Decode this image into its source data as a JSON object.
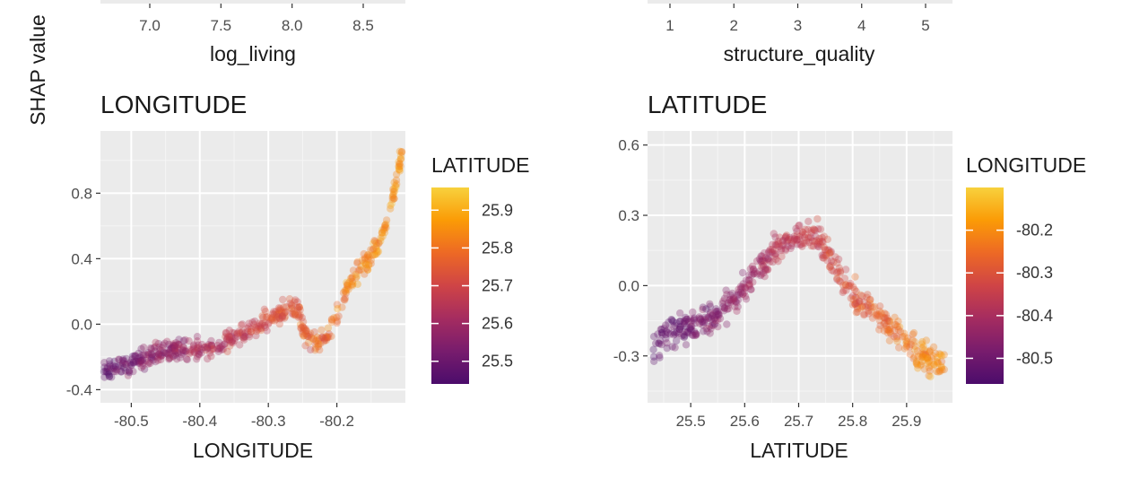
{
  "ylabel_shared": "SHAP value",
  "top_partial": {
    "left": {
      "xlabel": "log_living",
      "ticks": [
        "7.0",
        "7.5",
        "8.0",
        "8.5"
      ]
    },
    "right": {
      "xlabel": "structure_quality",
      "ticks": [
        "1",
        "2",
        "3",
        "4",
        "5"
      ]
    }
  },
  "chart_data": [
    {
      "type": "scatter",
      "title": "LONGITUDE",
      "xlabel": "LONGITUDE",
      "ylabel": "SHAP value",
      "xlim": [
        -80.545,
        -80.1
      ],
      "ylim": [
        -0.48,
        1.18
      ],
      "xticks": [
        -80.5,
        -80.4,
        -80.3,
        -80.2
      ],
      "xtick_labels": [
        "-80.5",
        "-80.4",
        "-80.3",
        "-80.2"
      ],
      "yticks": [
        -0.4,
        0.0,
        0.4,
        0.8
      ],
      "ytick_labels": [
        "-0.4",
        "0.0",
        "0.4",
        "0.8"
      ],
      "grid": true,
      "color_var": "LATITUDE",
      "colorbar": {
        "title": "LATITUDE",
        "min": 25.44,
        "max": 25.96,
        "ticks": [
          25.5,
          25.6,
          25.7,
          25.8,
          25.9
        ],
        "tick_labels": [
          "25.5",
          "25.6",
          "25.7",
          "25.8",
          "25.9"
        ]
      },
      "trend": [
        [
          -80.54,
          -0.28
        ],
        [
          -80.5,
          -0.24
        ],
        [
          -80.47,
          -0.19
        ],
        [
          -80.44,
          -0.16
        ],
        [
          -80.41,
          -0.15
        ],
        [
          -80.38,
          -0.14
        ],
        [
          -80.36,
          -0.1
        ],
        [
          -80.33,
          -0.04
        ],
        [
          -80.31,
          0.0
        ],
        [
          -80.29,
          0.05
        ],
        [
          -80.27,
          0.1
        ],
        [
          -80.255,
          0.07
        ],
        [
          -80.245,
          -0.08
        ],
        [
          -80.23,
          -0.12
        ],
        [
          -80.21,
          -0.04
        ],
        [
          -80.195,
          0.12
        ],
        [
          -80.18,
          0.26
        ],
        [
          -80.16,
          0.36
        ],
        [
          -80.14,
          0.48
        ],
        [
          -80.125,
          0.65
        ],
        [
          -80.115,
          0.85
        ],
        [
          -80.105,
          1.05
        ]
      ],
      "spread": 0.06
    },
    {
      "type": "scatter",
      "title": "LATITUDE",
      "xlabel": "LATITUDE",
      "ylabel": "SHAP value",
      "xlim": [
        25.42,
        25.985
      ],
      "ylim": [
        -0.5,
        0.66
      ],
      "xticks": [
        25.5,
        25.6,
        25.7,
        25.8,
        25.9
      ],
      "xtick_labels": [
        "25.5",
        "25.6",
        "25.7",
        "25.8",
        "25.9"
      ],
      "yticks": [
        -0.3,
        0.0,
        0.3,
        0.6
      ],
      "ytick_labels": [
        "-0.3",
        "0.0",
        "0.3",
        "0.6"
      ],
      "grid": true,
      "color_var": "LONGITUDE",
      "colorbar": {
        "title": "LONGITUDE",
        "min": -80.56,
        "max": -80.1,
        "ticks": [
          -80.2,
          -80.3,
          -80.4,
          -80.5
        ],
        "tick_labels": [
          "-80.2",
          "-80.3",
          "-80.4",
          "-80.5"
        ]
      },
      "trend": [
        [
          25.43,
          -0.25
        ],
        [
          25.46,
          -0.19
        ],
        [
          25.5,
          -0.18
        ],
        [
          25.54,
          -0.15
        ],
        [
          25.58,
          -0.06
        ],
        [
          25.62,
          0.06
        ],
        [
          25.65,
          0.13
        ],
        [
          25.68,
          0.2
        ],
        [
          25.71,
          0.23
        ],
        [
          25.74,
          0.2
        ],
        [
          25.76,
          0.1
        ],
        [
          25.78,
          0.02
        ],
        [
          25.8,
          -0.04
        ],
        [
          25.83,
          -0.1
        ],
        [
          25.86,
          -0.16
        ],
        [
          25.89,
          -0.22
        ],
        [
          25.92,
          -0.29
        ],
        [
          25.95,
          -0.33
        ],
        [
          25.97,
          -0.32
        ]
      ],
      "spread": 0.06
    }
  ],
  "colors": {
    "panel_bg": "#ebebeb",
    "grid_major": "#ffffff",
    "colormap_inferno": [
      "#4b0c6b",
      "#781c6d",
      "#a52c60",
      "#cf4446",
      "#ed6925",
      "#fb9b06",
      "#f7d13d"
    ]
  }
}
